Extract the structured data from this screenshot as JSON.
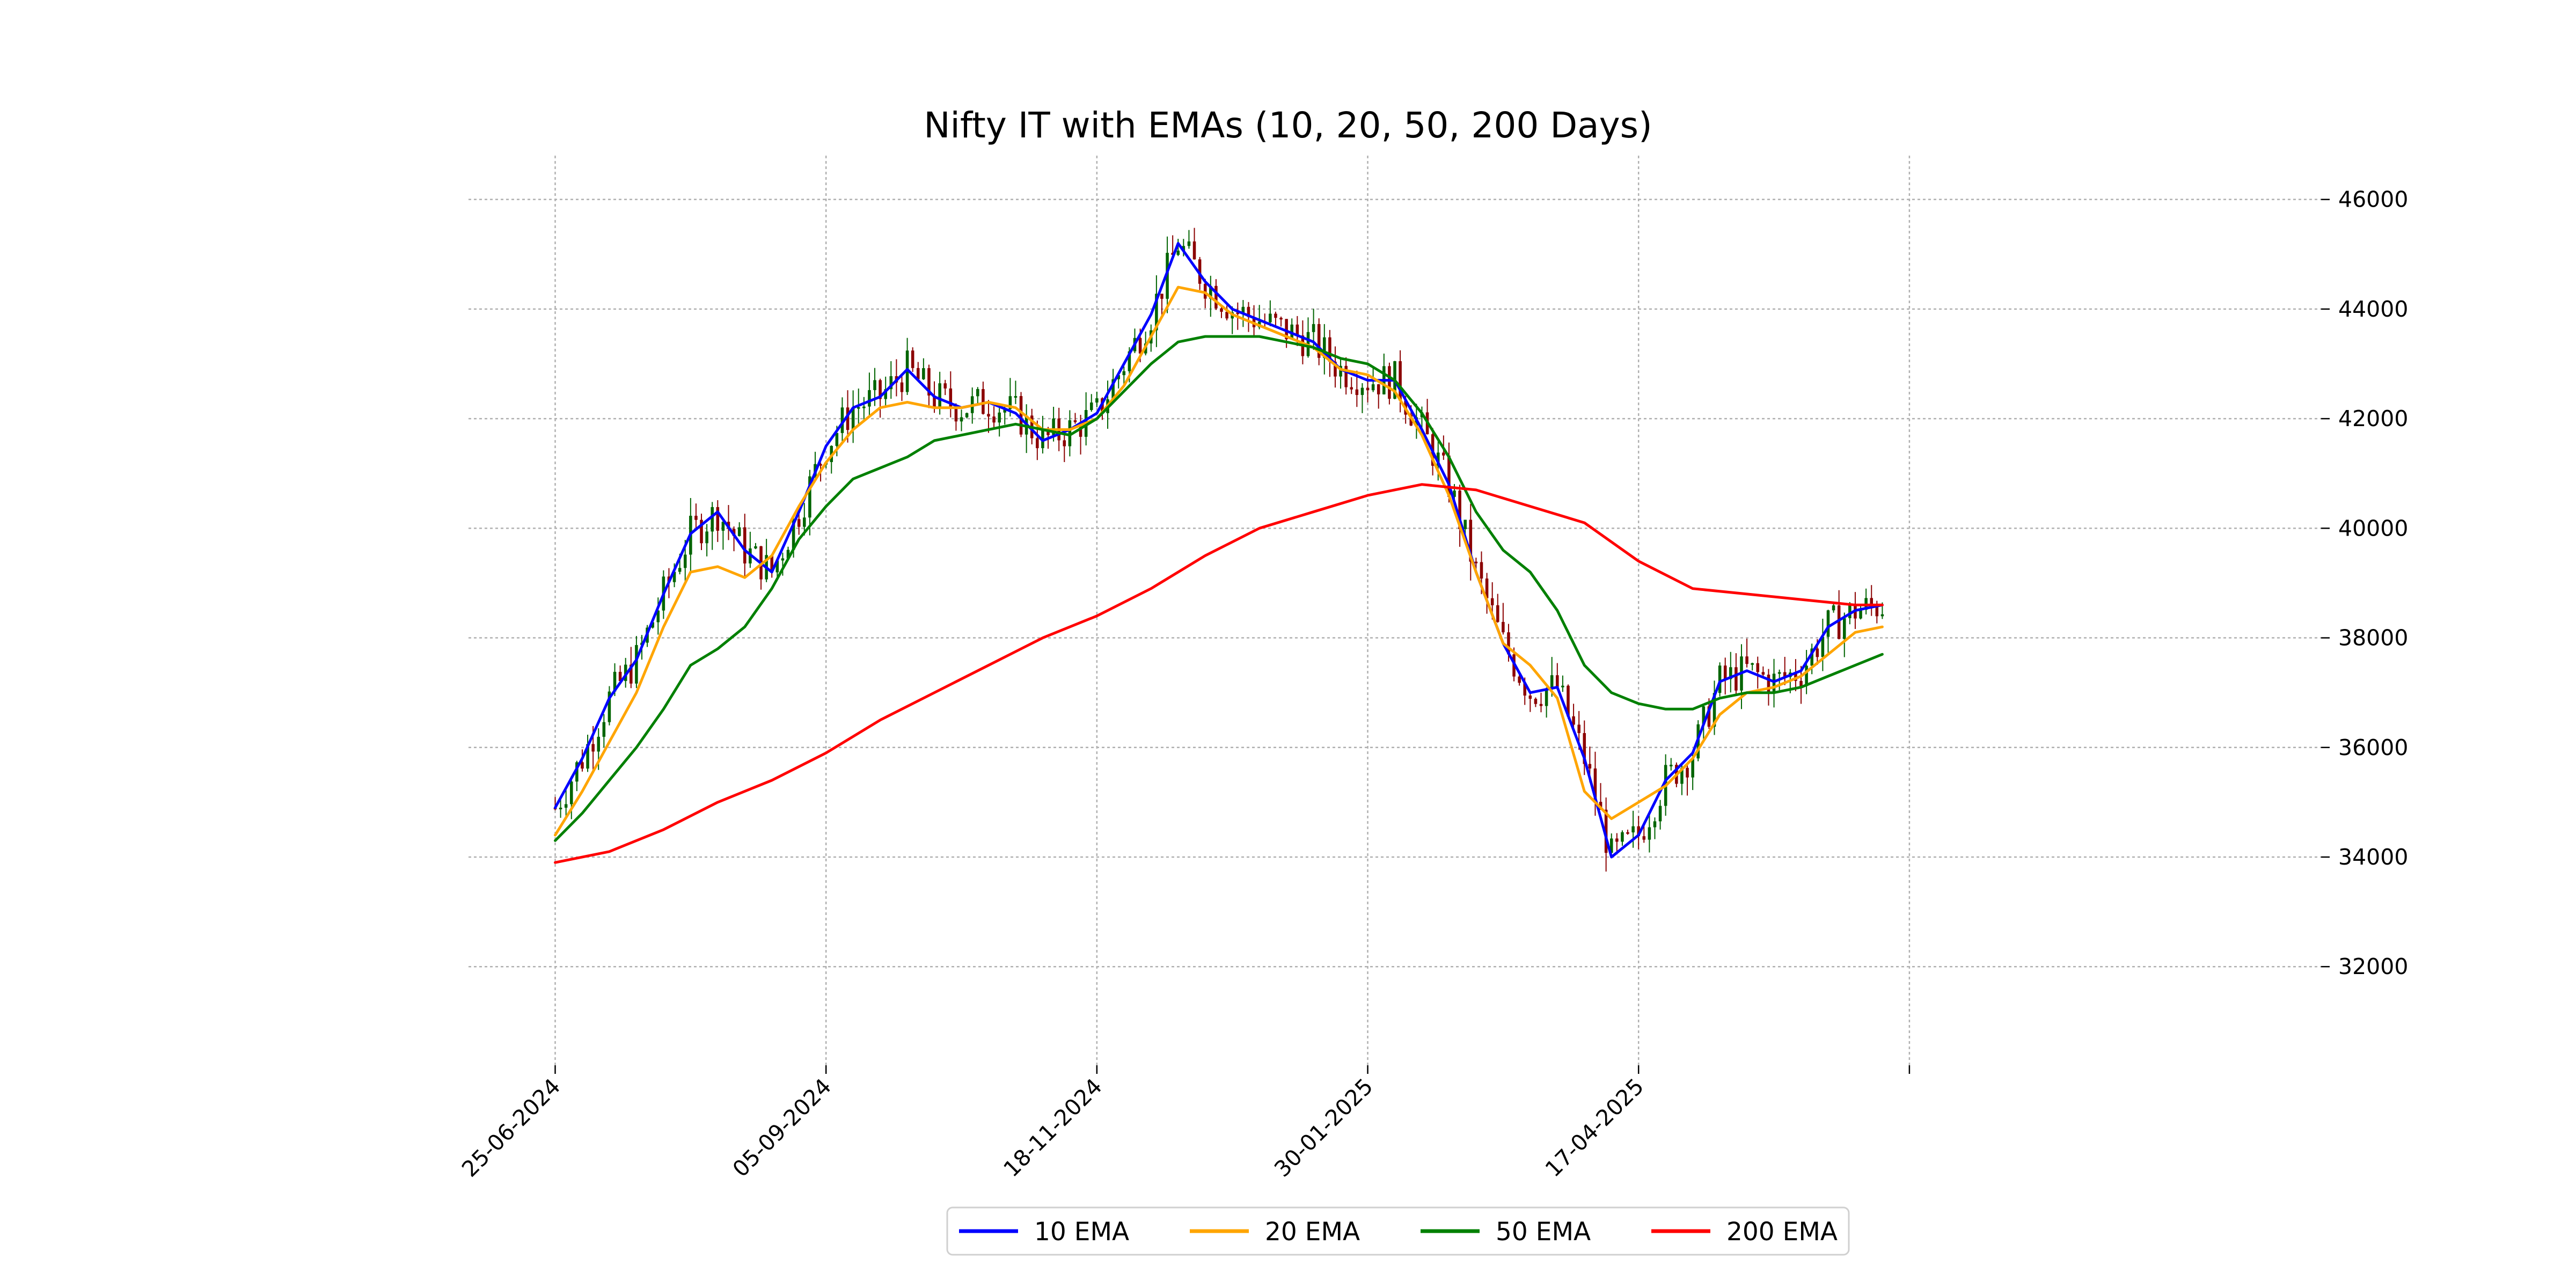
{
  "chart_data": {
    "type": "line",
    "title": "Nifty IT with EMAs (10, 20, 50, 200 Days)",
    "xlabel": "",
    "ylabel": "",
    "x_tick_labels": [
      "25-06-2024",
      "05-09-2024",
      "18-11-2024",
      "30-01-2025",
      "17-04-2025",
      ""
    ],
    "y_ticks": [
      32000,
      34000,
      36000,
      38000,
      40000,
      42000,
      44000,
      46000
    ],
    "ylim": [
      30200,
      46800
    ],
    "grid": true,
    "legend_position": "bottom-center",
    "x_index_range": [
      -16,
      326
    ],
    "x_tick_index": [
      0,
      50,
      100,
      150,
      200,
      250
    ],
    "series": [
      {
        "name": "10 EMA",
        "color": "#0000ff",
        "x": [
          0,
          5,
          10,
          15,
          20,
          25,
          30,
          35,
          40,
          45,
          50,
          55,
          60,
          65,
          70,
          75,
          80,
          85,
          90,
          95,
          100,
          105,
          110,
          115,
          120,
          125,
          130,
          135,
          140,
          145,
          150,
          155,
          160,
          165,
          170,
          175,
          180,
          185,
          190,
          195,
          200,
          205,
          210,
          215,
          220,
          225,
          230,
          235,
          240,
          245
        ],
        "y": [
          34900,
          35800,
          36900,
          37600,
          38800,
          39900,
          40300,
          39600,
          39200,
          40300,
          41500,
          42200,
          42400,
          42900,
          42400,
          42200,
          42300,
          42100,
          41600,
          41800,
          42100,
          43000,
          43900,
          45200,
          44500,
          44000,
          43800,
          43600,
          43400,
          42900,
          42700,
          42700,
          41800,
          40800,
          39200,
          37900,
          37000,
          37100,
          35800,
          34000,
          34400,
          35400,
          35900,
          37200,
          37400,
          37200,
          37400,
          38200,
          38500,
          38600
        ]
      },
      {
        "name": "20 EMA",
        "color": "#ffa500",
        "x": [
          0,
          5,
          10,
          15,
          20,
          25,
          30,
          35,
          40,
          45,
          50,
          55,
          60,
          65,
          70,
          75,
          80,
          85,
          90,
          95,
          100,
          105,
          110,
          115,
          120,
          125,
          130,
          135,
          140,
          145,
          150,
          155,
          160,
          165,
          170,
          175,
          180,
          185,
          190,
          195,
          200,
          205,
          210,
          215,
          220,
          225,
          230,
          235,
          240,
          245
        ],
        "y": [
          34400,
          35200,
          36100,
          37000,
          38200,
          39200,
          39300,
          39100,
          39500,
          40400,
          41200,
          41800,
          42200,
          42300,
          42200,
          42200,
          42300,
          42200,
          41800,
          41800,
          42000,
          42600,
          43500,
          44400,
          44300,
          43900,
          43700,
          43500,
          43300,
          42900,
          42800,
          42500,
          41700,
          40600,
          39200,
          37900,
          37500,
          36900,
          35200,
          34700,
          35000,
          35300,
          35800,
          36600,
          37000,
          37100,
          37300,
          37700,
          38100,
          38200
        ]
      },
      {
        "name": "50 EMA",
        "color": "#008000",
        "x": [
          0,
          5,
          10,
          15,
          20,
          25,
          30,
          35,
          40,
          45,
          50,
          55,
          60,
          65,
          70,
          75,
          80,
          85,
          90,
          95,
          100,
          105,
          110,
          115,
          120,
          125,
          130,
          135,
          140,
          145,
          150,
          155,
          160,
          165,
          170,
          175,
          180,
          185,
          190,
          195,
          200,
          205,
          210,
          215,
          220,
          225,
          230,
          235,
          240,
          245
        ],
        "y": [
          34300,
          34800,
          35400,
          36000,
          36700,
          37500,
          37800,
          38200,
          38900,
          39800,
          40400,
          40900,
          41100,
          41300,
          41600,
          41700,
          41800,
          41900,
          41800,
          41700,
          42000,
          42500,
          43000,
          43400,
          43500,
          43500,
          43500,
          43400,
          43300,
          43100,
          43000,
          42700,
          42100,
          41300,
          40300,
          39600,
          39200,
          38500,
          37500,
          37000,
          36800,
          36700,
          36700,
          36900,
          37000,
          37000,
          37100,
          37300,
          37500,
          37700
        ]
      },
      {
        "name": "200 EMA",
        "color": "#ff0000",
        "x": [
          0,
          10,
          20,
          30,
          40,
          50,
          60,
          70,
          80,
          90,
          100,
          110,
          120,
          130,
          140,
          150,
          160,
          170,
          180,
          190,
          200,
          210,
          220,
          230,
          240,
          245
        ],
        "y": [
          33900,
          34100,
          34500,
          35000,
          35400,
          35900,
          36500,
          37000,
          37500,
          38000,
          38400,
          38900,
          39500,
          40000,
          40300,
          40600,
          40800,
          40700,
          40400,
          40100,
          39400,
          38900,
          38800,
          38700,
          38600,
          38600
        ]
      }
    ]
  }
}
